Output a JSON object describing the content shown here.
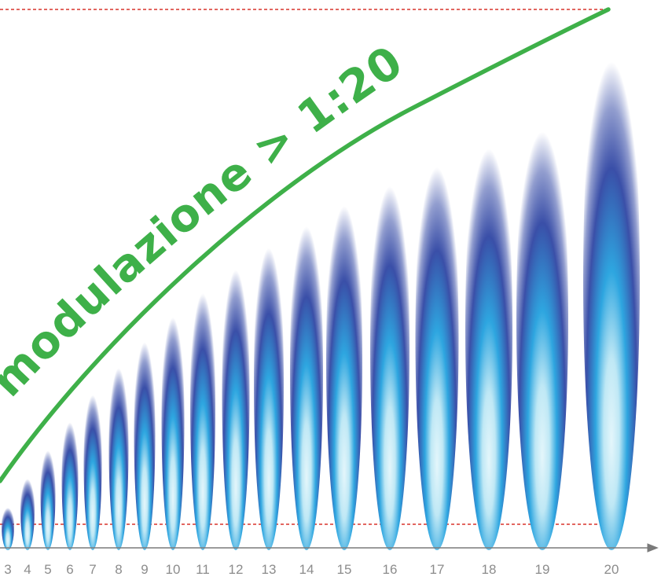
{
  "diagram": {
    "headline": "modulazione > 1:20",
    "colors": {
      "curve": "#3eb049",
      "text": "#3eb049",
      "reference_lines": "#d9342b",
      "axis": "#7a7a7a",
      "tick_labels": "#8c8c8c",
      "flame_outer": "#3a4fa8",
      "flame_mid": "#2ea6e0",
      "flame_core": "#cfeef7"
    },
    "flames": [
      {
        "label": "3",
        "level": 0.087
      },
      {
        "label": "4",
        "level": 0.146
      },
      {
        "label": "5",
        "level": 0.204
      },
      {
        "label": "6",
        "level": 0.262
      },
      {
        "label": "7",
        "level": 0.318
      },
      {
        "label": "8",
        "level": 0.373
      },
      {
        "label": "9",
        "level": 0.426
      },
      {
        "label": "10",
        "level": 0.477
      },
      {
        "label": "11",
        "level": 0.526
      },
      {
        "label": "12",
        "level": 0.574
      },
      {
        "label": "13",
        "level": 0.619
      },
      {
        "label": "14",
        "level": 0.663
      },
      {
        "label": "15",
        "level": 0.705
      },
      {
        "label": "16",
        "level": 0.745
      },
      {
        "label": "17",
        "level": 0.784
      },
      {
        "label": "18",
        "level": 0.822
      },
      {
        "label": "19",
        "level": 0.857
      },
      {
        "label": "20",
        "level": 1.0
      }
    ]
  }
}
